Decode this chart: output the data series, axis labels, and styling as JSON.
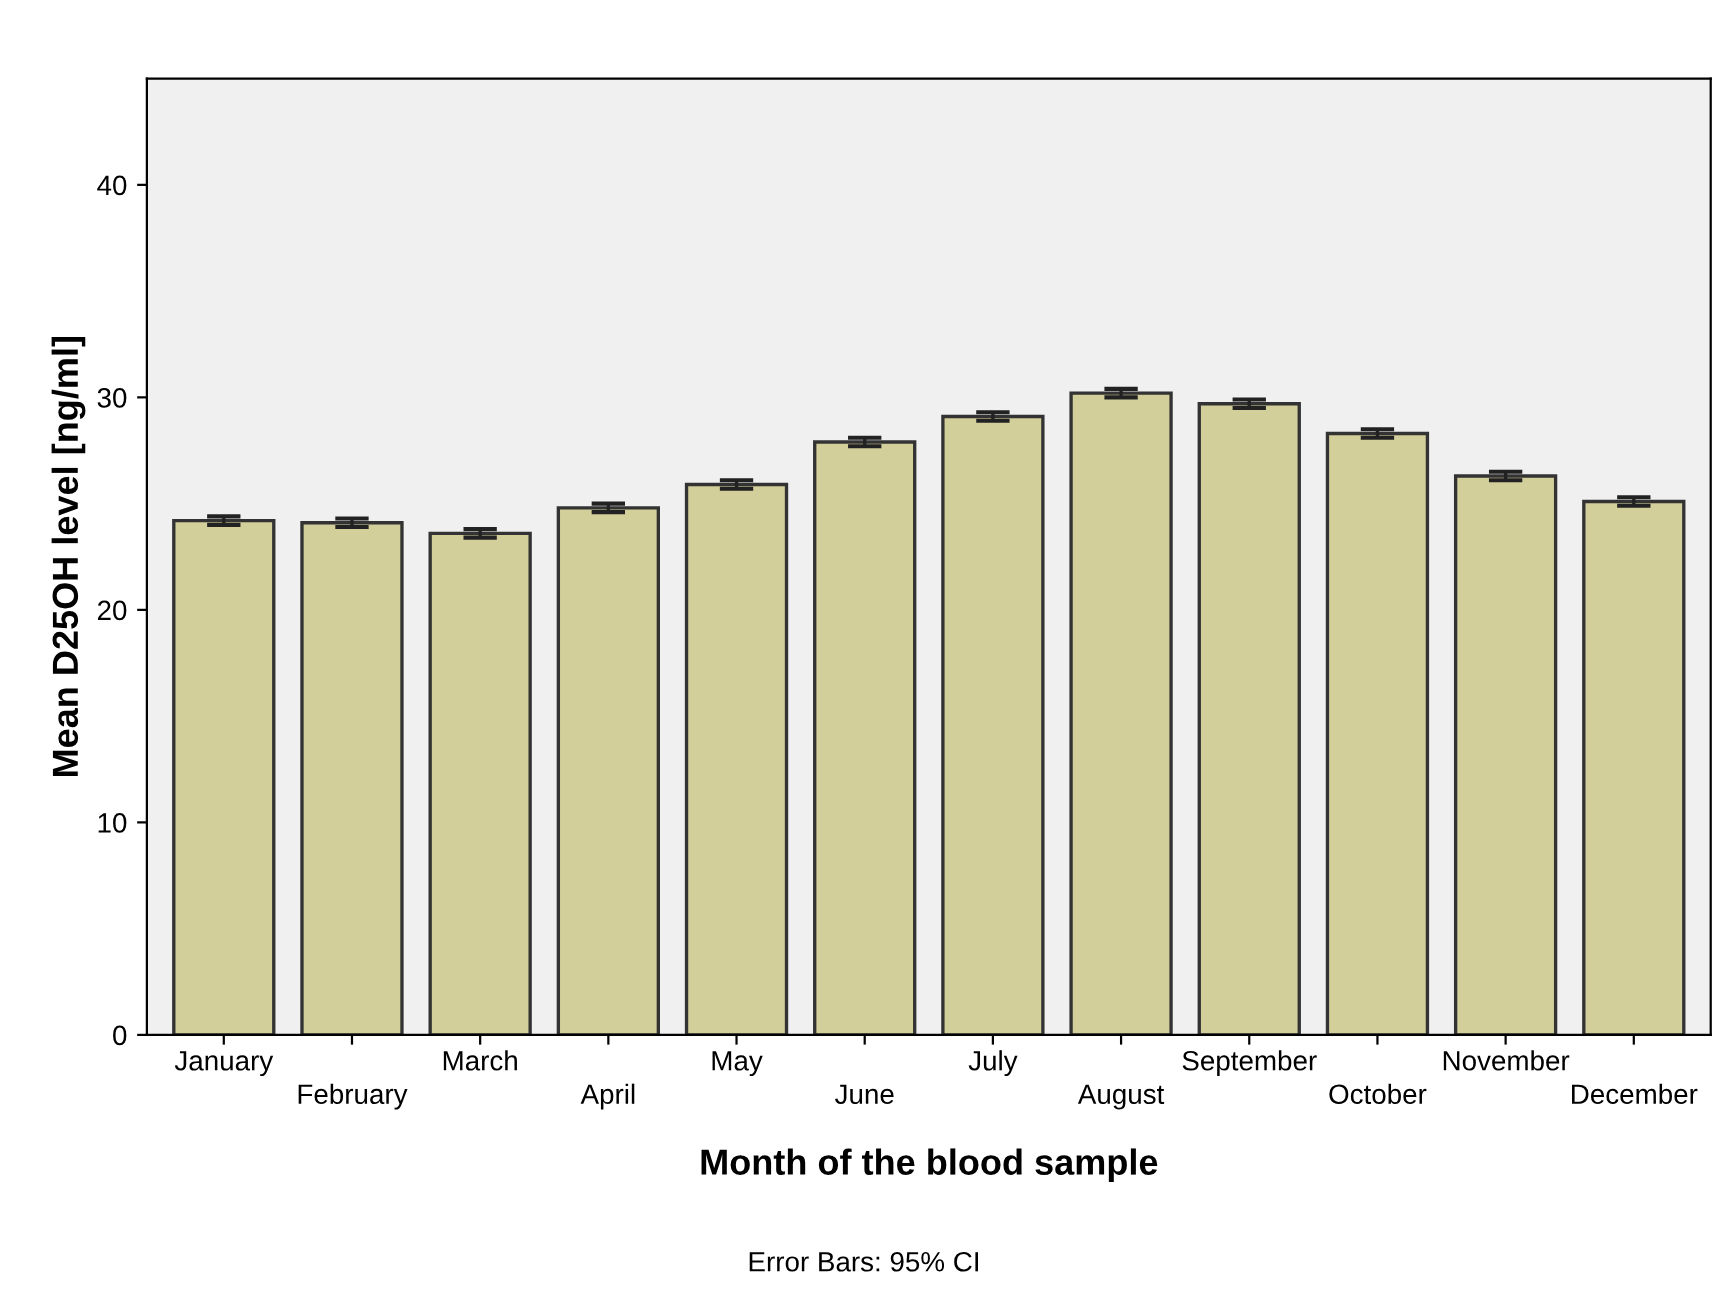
{
  "chart_data": {
    "type": "bar",
    "xlabel": "Month of the blood sample",
    "ylabel": "Mean D25OH level [ng/ml]",
    "annotations": [
      "Error Bars: 95% CI"
    ],
    "categories": [
      "January",
      "February",
      "March",
      "April",
      "May",
      "June",
      "July",
      "August",
      "September",
      "October",
      "November",
      "December"
    ],
    "values": [
      24.2,
      24.1,
      23.6,
      24.8,
      25.9,
      27.9,
      29.1,
      30.2,
      29.7,
      28.3,
      26.3,
      25.1
    ],
    "errors": [
      0.2,
      0.2,
      0.2,
      0.2,
      0.2,
      0.2,
      0.2,
      0.2,
      0.2,
      0.2,
      0.2,
      0.2
    ],
    "color": "#d3cf9b",
    "ylim": [
      0,
      45
    ],
    "yticks": [
      0,
      10,
      20,
      30,
      40
    ],
    "grid": false,
    "legend": false
  }
}
